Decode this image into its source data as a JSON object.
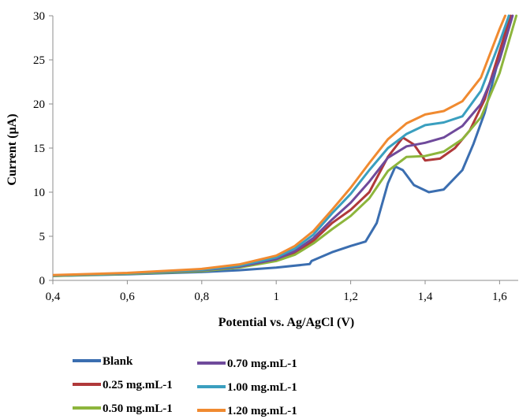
{
  "chart_data": {
    "type": "line",
    "title": "",
    "xlabel": "Potential vs. Ag/AgCl (V)",
    "ylabel": "Current (µA)",
    "xlim": [
      0.4,
      1.65
    ],
    "ylim": [
      0,
      30
    ],
    "x_ticks": [
      "0,4",
      "0,6",
      "0,8",
      "1",
      "1,2",
      "1,4",
      "1,6"
    ],
    "x_tick_values": [
      0.4,
      0.6,
      0.8,
      1.0,
      1.2,
      1.4,
      1.6
    ],
    "y_ticks": [
      "0",
      "5",
      "10",
      "15",
      "20",
      "25",
      "30"
    ],
    "y_tick_values": [
      0,
      5,
      10,
      15,
      20,
      25,
      30
    ],
    "grid": false,
    "legend_position": "bottom",
    "series": [
      {
        "name": "Blank",
        "color": "#3b6eb0",
        "points": [
          [
            0.4,
            0.5
          ],
          [
            0.6,
            0.7
          ],
          [
            0.8,
            0.95
          ],
          [
            0.9,
            1.15
          ],
          [
            1.0,
            1.45
          ],
          [
            1.09,
            1.85
          ],
          [
            1.095,
            2.2
          ],
          [
            1.15,
            3.2
          ],
          [
            1.2,
            3.9
          ],
          [
            1.24,
            4.4
          ],
          [
            1.27,
            6.5
          ],
          [
            1.3,
            11.0
          ],
          [
            1.32,
            12.9
          ],
          [
            1.34,
            12.5
          ],
          [
            1.37,
            10.8
          ],
          [
            1.41,
            10.0
          ],
          [
            1.45,
            10.3
          ],
          [
            1.5,
            12.5
          ],
          [
            1.53,
            15.5
          ],
          [
            1.56,
            19.0
          ],
          [
            1.6,
            25.5
          ],
          [
            1.625,
            30.0
          ]
        ]
      },
      {
        "name": "0.25 mg.mL-1",
        "color": "#b0393a",
        "points": [
          [
            0.4,
            0.55
          ],
          [
            0.6,
            0.8
          ],
          [
            0.8,
            1.1
          ],
          [
            0.9,
            1.5
          ],
          [
            1.0,
            2.3
          ],
          [
            1.05,
            3.1
          ],
          [
            1.1,
            4.5
          ],
          [
            1.15,
            6.5
          ],
          [
            1.2,
            8.0
          ],
          [
            1.25,
            10.0
          ],
          [
            1.3,
            14.0
          ],
          [
            1.34,
            16.2
          ],
          [
            1.37,
            15.4
          ],
          [
            1.4,
            13.6
          ],
          [
            1.44,
            13.8
          ],
          [
            1.48,
            15.0
          ],
          [
            1.52,
            17.0
          ],
          [
            1.56,
            20.5
          ],
          [
            1.6,
            26.0
          ],
          [
            1.63,
            30.0
          ]
        ]
      },
      {
        "name": "0.50 mg.mL-1",
        "color": "#8db53c",
        "points": [
          [
            0.4,
            0.5
          ],
          [
            0.6,
            0.75
          ],
          [
            0.8,
            1.05
          ],
          [
            0.9,
            1.45
          ],
          [
            1.0,
            2.2
          ],
          [
            1.05,
            2.9
          ],
          [
            1.1,
            4.2
          ],
          [
            1.15,
            5.8
          ],
          [
            1.2,
            7.3
          ],
          [
            1.25,
            9.3
          ],
          [
            1.3,
            12.4
          ],
          [
            1.35,
            14.0
          ],
          [
            1.4,
            14.1
          ],
          [
            1.45,
            14.6
          ],
          [
            1.5,
            16.0
          ],
          [
            1.55,
            18.5
          ],
          [
            1.6,
            23.5
          ],
          [
            1.645,
            30.0
          ]
        ]
      },
      {
        "name": "0.70 mg.mL-1",
        "color": "#6f4a9b",
        "points": [
          [
            0.4,
            0.55
          ],
          [
            0.6,
            0.8
          ],
          [
            0.8,
            1.15
          ],
          [
            0.9,
            1.55
          ],
          [
            1.0,
            2.4
          ],
          [
            1.05,
            3.3
          ],
          [
            1.1,
            4.8
          ],
          [
            1.15,
            6.9
          ],
          [
            1.2,
            8.8
          ],
          [
            1.25,
            11.2
          ],
          [
            1.3,
            13.9
          ],
          [
            1.35,
            15.2
          ],
          [
            1.4,
            15.6
          ],
          [
            1.45,
            16.2
          ],
          [
            1.5,
            17.5
          ],
          [
            1.55,
            20.0
          ],
          [
            1.6,
            25.0
          ],
          [
            1.635,
            30.0
          ]
        ]
      },
      {
        "name": "1.00 mg.mL-1",
        "color": "#3a9fbf",
        "points": [
          [
            0.4,
            0.55
          ],
          [
            0.6,
            0.8
          ],
          [
            0.8,
            1.2
          ],
          [
            0.9,
            1.65
          ],
          [
            1.0,
            2.6
          ],
          [
            1.05,
            3.6
          ],
          [
            1.1,
            5.2
          ],
          [
            1.15,
            7.6
          ],
          [
            1.2,
            9.8
          ],
          [
            1.25,
            12.5
          ],
          [
            1.3,
            15.0
          ],
          [
            1.35,
            16.6
          ],
          [
            1.4,
            17.6
          ],
          [
            1.45,
            17.9
          ],
          [
            1.5,
            18.6
          ],
          [
            1.55,
            21.5
          ],
          [
            1.6,
            27.0
          ],
          [
            1.625,
            30.0
          ]
        ]
      },
      {
        "name": "1.20 mg.mL-1",
        "color": "#f08a30",
        "points": [
          [
            0.4,
            0.6
          ],
          [
            0.6,
            0.85
          ],
          [
            0.8,
            1.3
          ],
          [
            0.9,
            1.8
          ],
          [
            1.0,
            2.8
          ],
          [
            1.05,
            3.9
          ],
          [
            1.1,
            5.6
          ],
          [
            1.15,
            8.0
          ],
          [
            1.2,
            10.5
          ],
          [
            1.25,
            13.3
          ],
          [
            1.3,
            16.0
          ],
          [
            1.35,
            17.8
          ],
          [
            1.4,
            18.8
          ],
          [
            1.45,
            19.2
          ],
          [
            1.5,
            20.3
          ],
          [
            1.55,
            23.0
          ],
          [
            1.6,
            28.5
          ],
          [
            1.615,
            30.0
          ]
        ]
      }
    ]
  }
}
